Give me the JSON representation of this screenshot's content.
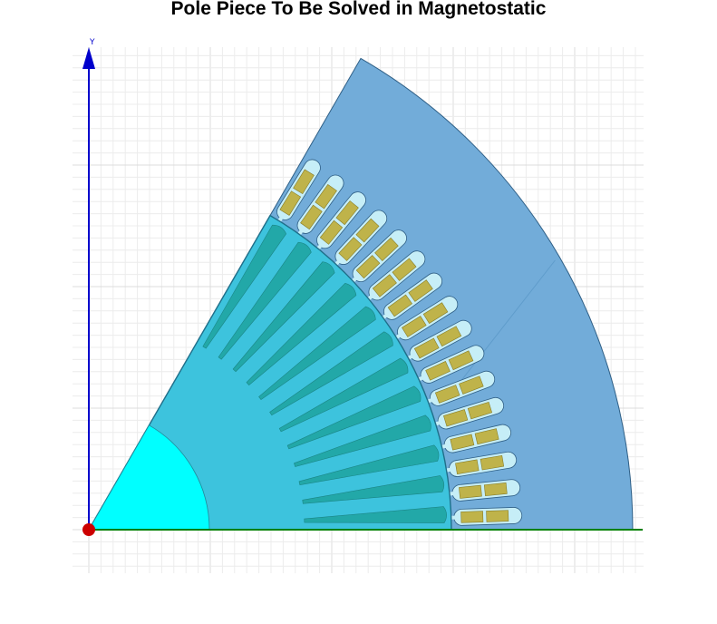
{
  "title": "Pole Piece To Be Solved in Magnetostatic",
  "axes": {
    "y_label": "Y"
  },
  "geometry": {
    "sector_angle_deg": 60,
    "stator": {
      "name": "stator",
      "slots": 16
    },
    "rotor": {
      "name": "rotor",
      "slots": 12
    },
    "shaft": {
      "name": "shaft"
    }
  },
  "colors": {
    "background": "#ffffff",
    "grid_minor": "#ececec",
    "grid_major": "#dcdcdc",
    "y_axis": "#0000cc",
    "x_axis": "#008000",
    "origin": "#cc0000",
    "stator": "#72acd9",
    "rotor": "#3dc3dd",
    "shaft": "#00ffff",
    "rotor_slot": "#22a8a8",
    "stator_slot": "#c6eef7",
    "coil": "#bfb34a",
    "outline": "#2f5f86"
  }
}
